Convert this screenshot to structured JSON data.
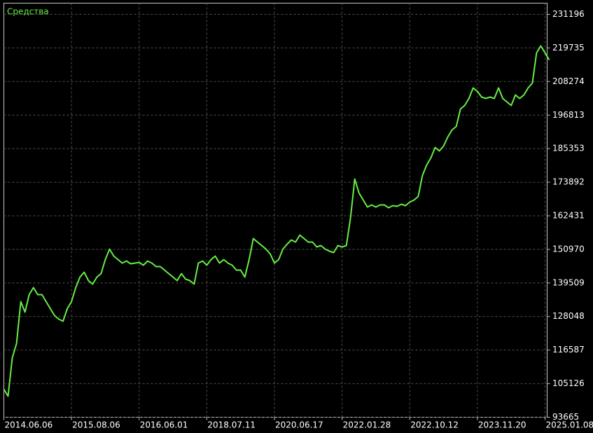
{
  "chart_data": {
    "type": "line",
    "title": "Средства",
    "color": "#66ee44",
    "grid": true,
    "xlim": [
      0,
      128.5
    ],
    "xticks": [
      {
        "value": 0,
        "label": "2014.06.06"
      },
      {
        "value": 16,
        "label": "2015.08.06"
      },
      {
        "value": 32,
        "label": "2016.06.01"
      },
      {
        "value": 48,
        "label": "2018.07.11"
      },
      {
        "value": 64,
        "label": "2020.06.17"
      },
      {
        "value": 80,
        "label": "2022.01.28"
      },
      {
        "value": 96,
        "label": "2022.10.12"
      },
      {
        "value": 112,
        "label": "2023.11.20"
      },
      {
        "value": 128,
        "label": "2025.01.08"
      }
    ],
    "ylim": [
      93665,
      235023
    ],
    "yticks": [
      93665,
      105126,
      116587,
      128048,
      139509,
      150970,
      162431,
      173892,
      185353,
      196813,
      208274,
      219735,
      231196
    ],
    "values": [
      103233,
      100841,
      113997,
      118781,
      133133,
      129545,
      135525,
      137917,
      135525,
      135525,
      133133,
      130741,
      128349,
      127153,
      126435,
      130741,
      133133,
      137917,
      141505,
      143179,
      140309,
      139113,
      141505,
      142701,
      147485,
      151073,
      148681,
      147485,
      146289,
      147007,
      146050,
      146289,
      146528,
      145571,
      147007,
      146289,
      145093,
      145093,
      143897,
      142701,
      141505,
      140309,
      142701,
      140787,
      140309,
      139113,
      146289,
      147007,
      145571,
      147485,
      148681,
      146289,
      147485,
      146289,
      145571,
      143897,
      143897,
      141505,
      147485,
      154661,
      153465,
      152269,
      151073,
      149399,
      146289,
      147485,
      151073,
      152747,
      154183,
      153465,
      155857,
      154661,
      153465,
      153465,
      151791,
      152269,
      151073,
      150355,
      149877,
      152269,
      151791,
      152269,
      161837,
      174993,
      170209,
      167817,
      165425,
      166143,
      165425,
      166143,
      166143,
      165186,
      165903,
      165664,
      166382,
      165903,
      167099,
      167817,
      169013,
      176189,
      179777,
      182169,
      185757,
      184561,
      186235,
      189345,
      191737,
      192933,
      198913,
      200109,
      202501,
      206089,
      204893,
      202979,
      202501,
      202979,
      202501,
      206089,
      202501,
      201305,
      200109,
      203697,
      202501,
      203697,
      206089,
      207763,
      218049,
      220441,
      218049,
      215657
    ]
  }
}
